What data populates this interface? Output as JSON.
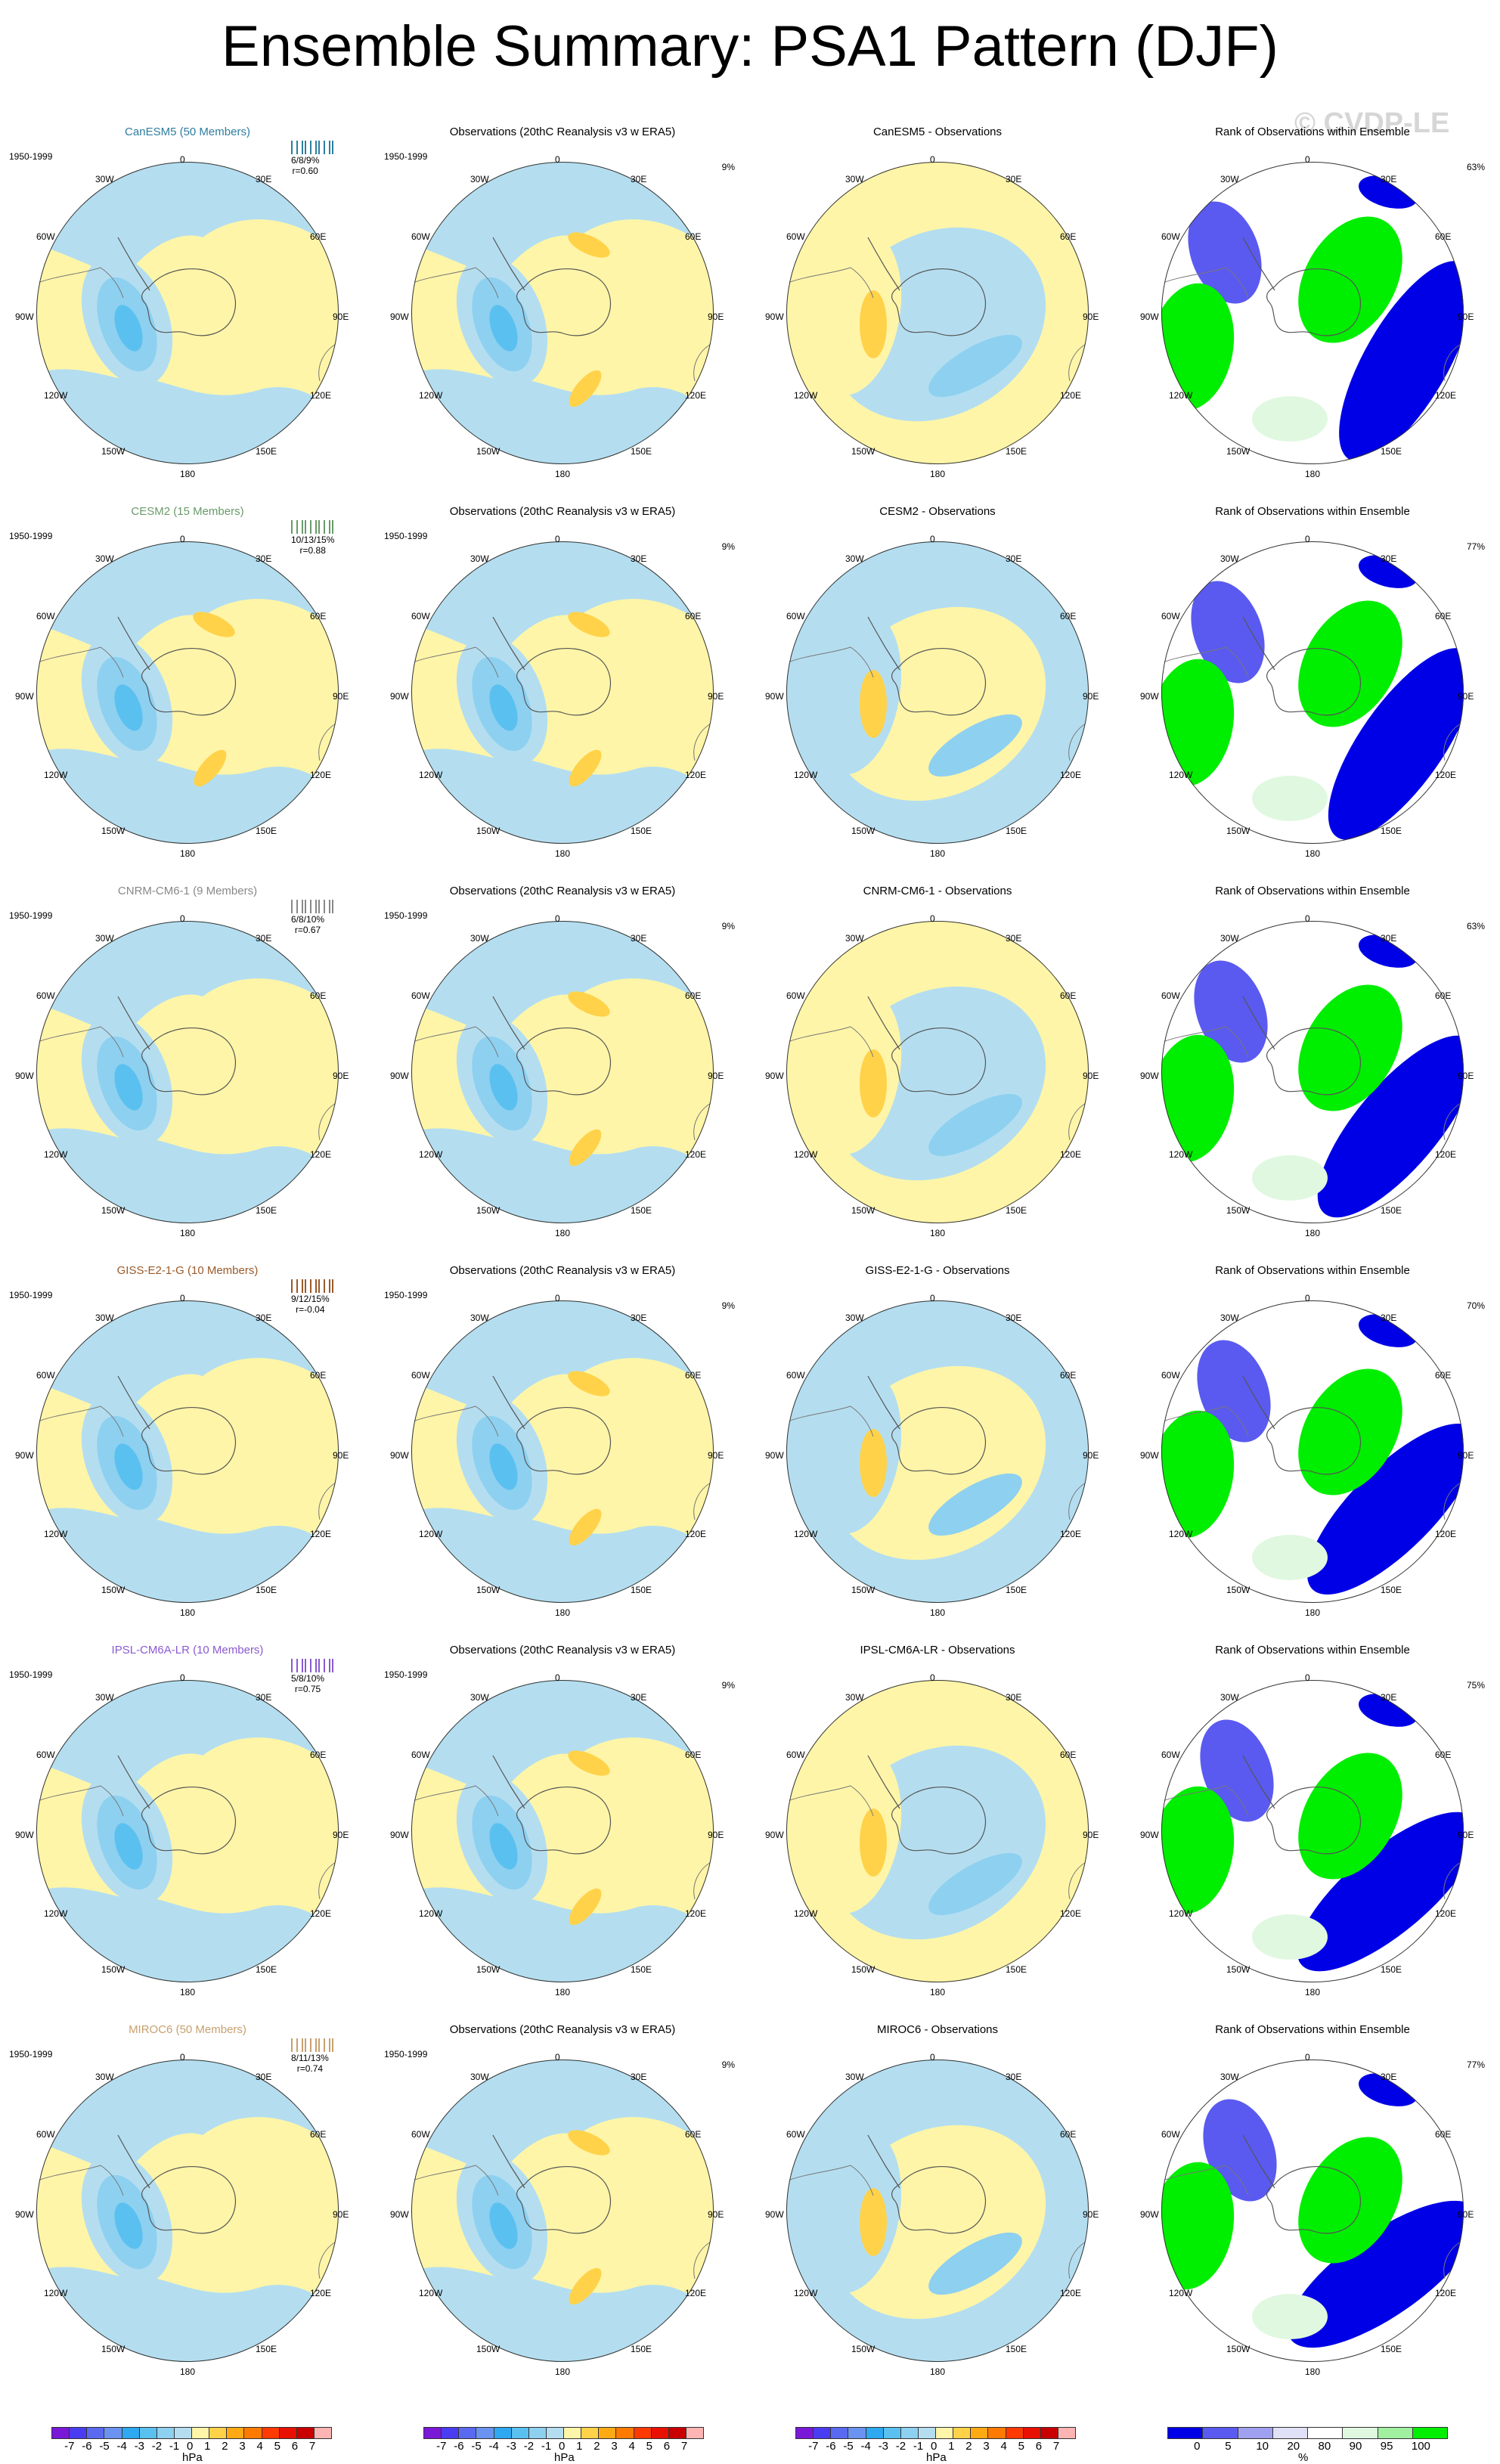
{
  "title": "Ensemble Summary: PSA1 Pattern (DJF)",
  "watermark": "© CVDP-LE",
  "period": "1950-1999",
  "grid_labels": {
    "top": "0",
    "r30": "30E",
    "r60": "60E",
    "r90": "90E",
    "r120": "120E",
    "r150": "150E",
    "bottom": "180",
    "l150": "150W",
    "l120": "120W",
    "l90": "90W",
    "l60": "60W",
    "l30": "30W"
  },
  "rows": [
    {
      "model": "CanESM5 (50 Members)",
      "model_short": "CanESM5",
      "color": "#2d7ea0",
      "stats_pct": "6/8/9%",
      "stats_r": "r=0.60",
      "rank_pct": "63%",
      "diff_title": "CanESM5 - Observations"
    },
    {
      "model": "CESM2 (15 Members)",
      "model_short": "CESM2",
      "color": "#6a9a6a",
      "stats_pct": "10/13/15%",
      "stats_r": "r=0.88",
      "rank_pct": "77%",
      "diff_title": "CESM2 - Observations"
    },
    {
      "model": "CNRM-CM6-1 (9 Members)",
      "model_short": "CNRM-CM6-1",
      "color": "#888888",
      "stats_pct": "6/8/10%",
      "stats_r": "r=0.67",
      "rank_pct": "63%",
      "diff_title": "CNRM-CM6-1 - Observations"
    },
    {
      "model": "GISS-E2-1-G (10 Members)",
      "model_short": "GISS-E2-1-G",
      "color": "#9a5a2a",
      "stats_pct": "9/12/15%",
      "stats_r": "r=-0.04",
      "rank_pct": "70%",
      "diff_title": "GISS-E2-1-G - Observations"
    },
    {
      "model": "IPSL-CM6A-LR (10 Members)",
      "model_short": "IPSL-CM6A-LR",
      "color": "#8a5ad0",
      "stats_pct": "5/8/10%",
      "stats_r": "r=0.75",
      "rank_pct": "75%",
      "diff_title": "IPSL-CM6A-LR - Observations"
    },
    {
      "model": "MIROC6 (50 Members)",
      "model_short": "MIROC6",
      "color": "#c8a070",
      "stats_pct": "8/11/13%",
      "stats_r": "r=0.74",
      "rank_pct": "77%",
      "diff_title": "MIROC6 - Observations"
    }
  ],
  "obs_title": "Observations (20thC Reanalysis v3 w ERA5)",
  "obs_pct": "9%",
  "rank_title": "Rank of Observations within Ensemble",
  "colorbar_hpa": {
    "labels": [
      "-7",
      "-6",
      "-5",
      "-4",
      "-3",
      "-2",
      "-1",
      "0",
      "1",
      "2",
      "3",
      "4",
      "5",
      "6",
      "7"
    ],
    "colors": [
      "#7a18d8",
      "#4a3cf0",
      "#5a6af0",
      "#6a92f0",
      "#2ea8f0",
      "#5ac0f0",
      "#8ed0f0",
      "#b4def0",
      "#fff5a8",
      "#ffd24a",
      "#ffaa14",
      "#ff7a00",
      "#ff3a00",
      "#e81000",
      "#c80000",
      "#ffb4b4"
    ],
    "unit": "hPa"
  },
  "colorbar_rank": {
    "labels": [
      "0",
      "5",
      "10",
      "20",
      "80",
      "90",
      "95",
      "100"
    ],
    "colors": [
      "#0000e6",
      "#5a5af0",
      "#a0a0f0",
      "#e0e0f6",
      "#ffffff",
      "#e0f8e0",
      "#a0f0a0",
      "#00ee00"
    ],
    "unit": "%"
  }
}
